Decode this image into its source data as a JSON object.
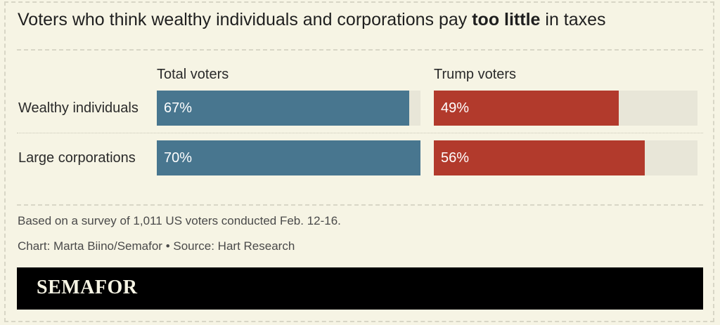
{
  "header": {
    "title_prefix": "Voters who think wealthy individuals and corporations pay ",
    "title_bold": "too little",
    "title_suffix": " in taxes"
  },
  "chart_data": {
    "type": "bar",
    "categories": [
      "Wealthy individuals",
      "Large corporations"
    ],
    "series": [
      {
        "name": "Total voters",
        "values": [
          67,
          70
        ],
        "labels": [
          "67%",
          "70%"
        ],
        "color": "#48768f"
      },
      {
        "name": "Trump voters",
        "values": [
          49,
          56
        ],
        "labels": [
          "49%",
          "56%"
        ],
        "color": "#b23a2c"
      }
    ],
    "ylim": [
      0,
      70
    ],
    "track_color": "#e8e6d8"
  },
  "notes": {
    "survey": "Based on a survey of 1,011 US voters conducted Feb. 12-16.",
    "credit": "Chart: Marta Biino/Semafor • Source: Hart Research"
  },
  "footer": {
    "brand": "SEMAFOR"
  }
}
